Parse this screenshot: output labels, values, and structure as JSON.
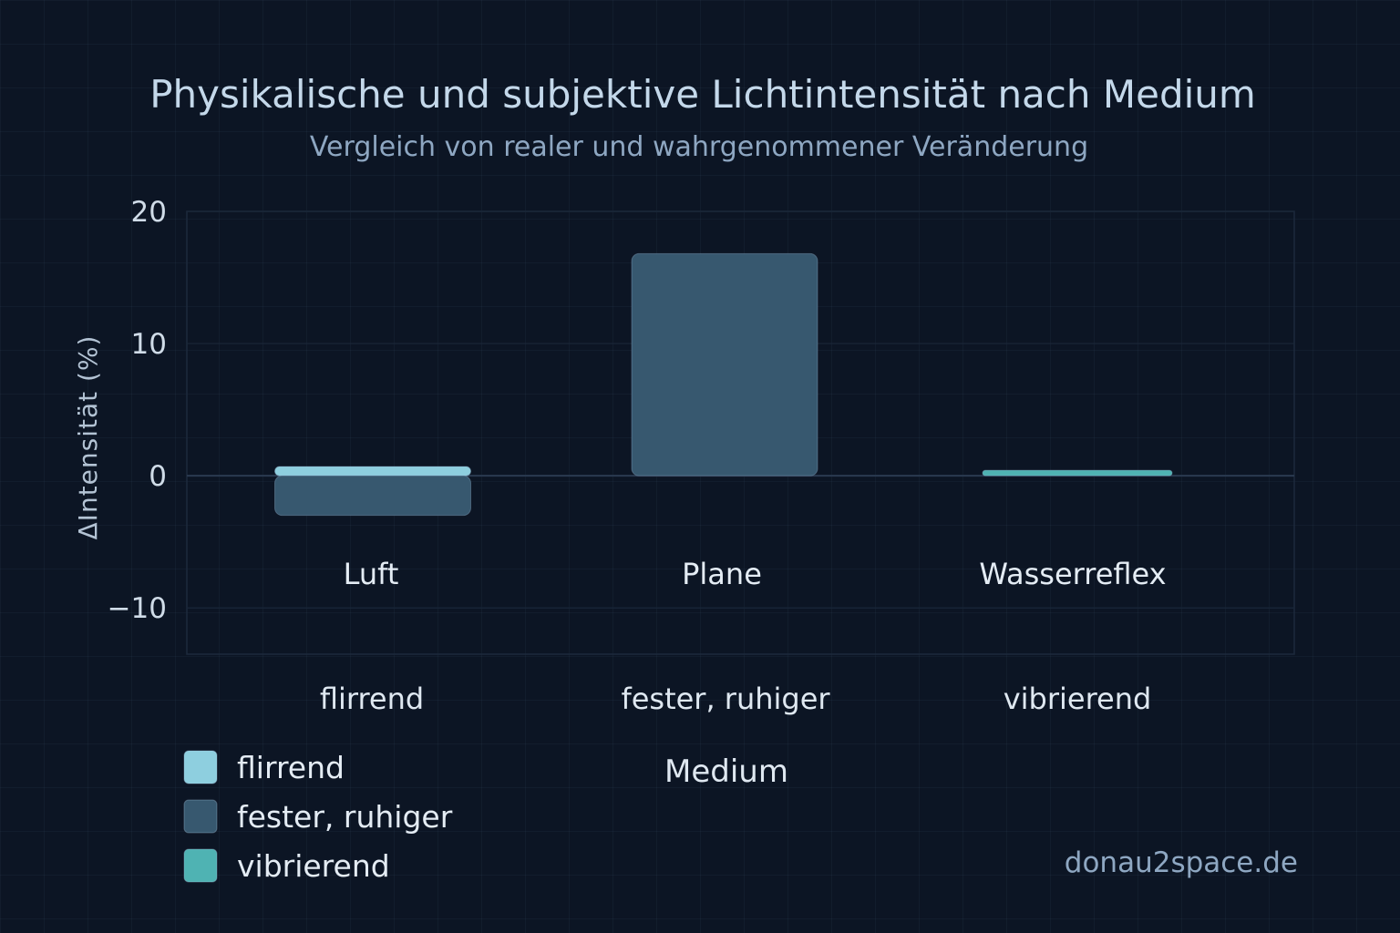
{
  "chart_data": {
    "type": "bar",
    "title": "Physikalische und subjektive Lichtintensität nach Medium",
    "subtitle": "Vergleich von realer und wahrgenommener Veränderung",
    "ylabel": "ΔIntensität (%)",
    "xlabel": "Medium",
    "ylim": [
      -13.5,
      20
    ],
    "yticks": [
      {
        "value": 20,
        "label": "20"
      },
      {
        "value": 10,
        "label": "10"
      },
      {
        "value": 0,
        "label": "0"
      },
      {
        "value": -10,
        "label": "−10"
      }
    ],
    "categories": [
      "Luft",
      "Plane",
      "Wasserreflex"
    ],
    "group_labels": [
      "flirrend",
      "fester, ruhiger",
      "vibrierend"
    ],
    "series": [
      {
        "name": "flirrend",
        "color": "#8ecfdf",
        "values": [
          0.7,
          0,
          0
        ]
      },
      {
        "name": "fester, ruhiger",
        "color": "#37586f",
        "values": [
          -3.0,
          16.8,
          0
        ]
      },
      {
        "name": "vibrierend",
        "color": "#4fb3b3",
        "values": [
          0,
          0,
          0.4
        ]
      }
    ],
    "legend": {
      "placement": "bottom-left",
      "entries": [
        {
          "label": "flirrend",
          "color": "#8ecfdf"
        },
        {
          "label": "fester, ruhiger",
          "color": "#37586f"
        },
        {
          "label": "vibrierend",
          "color": "#4fb3b3"
        }
      ]
    },
    "grid": true
  },
  "watermark": "donau2space.de"
}
